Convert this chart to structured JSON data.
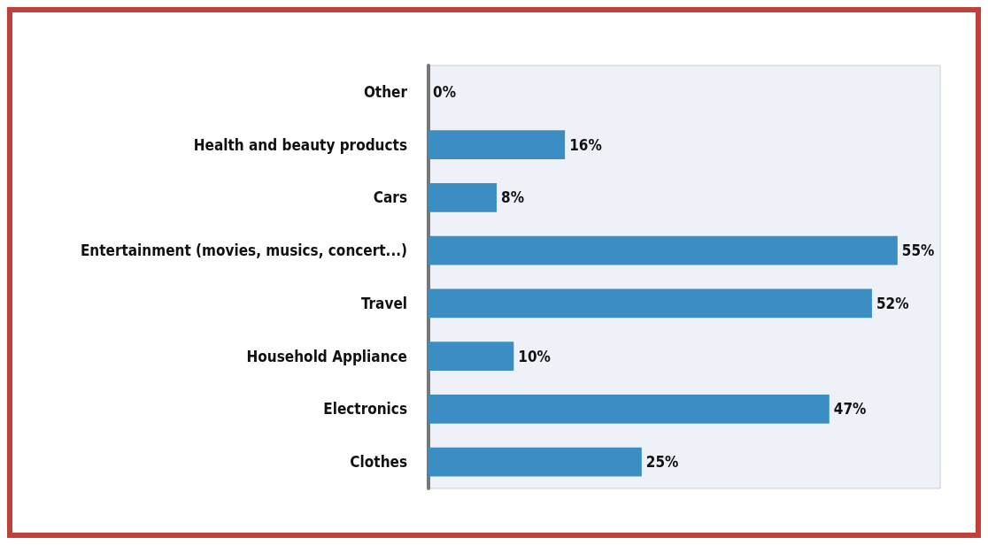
{
  "chart_data": {
    "type": "bar",
    "orientation": "horizontal",
    "categories": [
      "Other",
      "Health and beauty products",
      "Cars",
      "Entertainment (movies, musics, concert...)",
      "Travel",
      "Household Appliance",
      "Electronics",
      "Clothes"
    ],
    "values": [
      0,
      16,
      8,
      55,
      52,
      10,
      47,
      25
    ],
    "value_labels": [
      "0%",
      "16%",
      "8%",
      "55%",
      "52%",
      "10%",
      "47%",
      "25%"
    ],
    "color": "#3a8ec4"
  }
}
